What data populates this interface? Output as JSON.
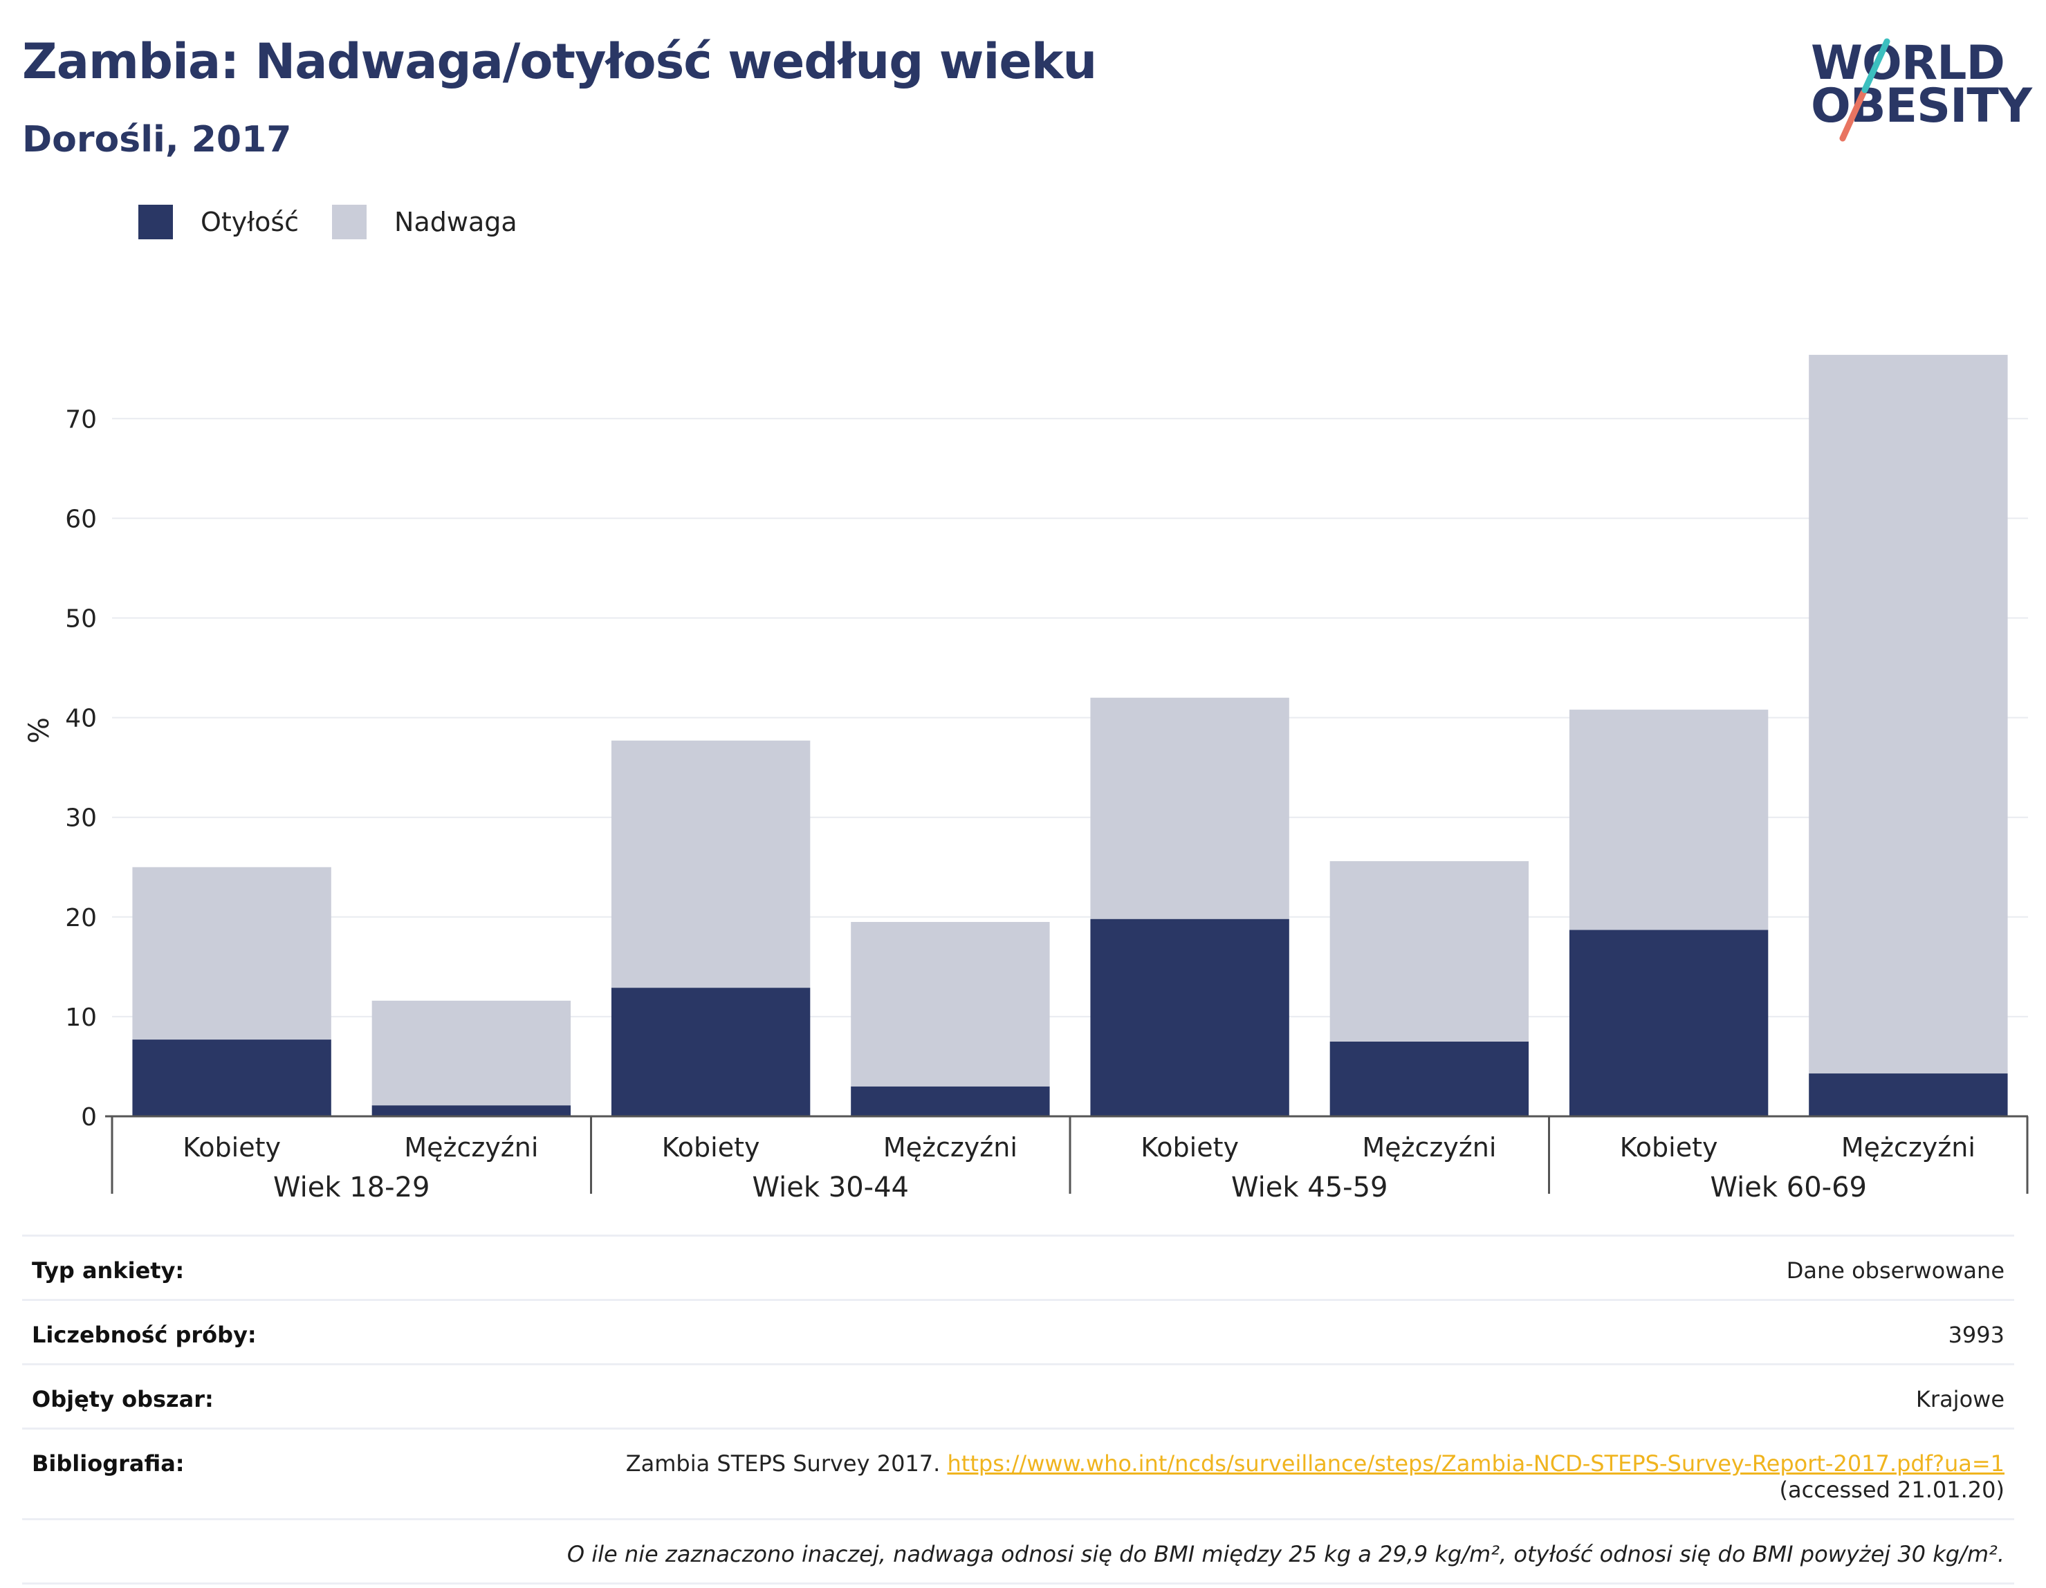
{
  "title": "Zambia: Nadwaga/otyłość według wieku",
  "subtitle": "Dorośli, 2017",
  "logo": {
    "line1": "WORLD",
    "line2": "OBESITY",
    "colors": {
      "teal": "#3cbfbf",
      "coral": "#e87461",
      "navy": "#2a3765"
    }
  },
  "colors": {
    "obesity": "#2a3765",
    "overweight": "#cacdd9",
    "grid": "#e9ebf0",
    "axis": "#555555"
  },
  "legend": [
    {
      "label": "Otyłość",
      "color": "#2a3765"
    },
    {
      "label": "Nadwaga",
      "color": "#cacdd9"
    }
  ],
  "chart_data": {
    "type": "bar",
    "stacked": true,
    "ylabel": "%",
    "ylim": [
      0,
      78
    ],
    "yticks": [
      0,
      10,
      20,
      30,
      40,
      50,
      60,
      70
    ],
    "grid": true,
    "legend_position": "top-left",
    "groups": [
      "Wiek 18-29",
      "Wiek 30-44",
      "Wiek 45-59",
      "Wiek 60-69"
    ],
    "categories": [
      "Kobiety",
      "Mężczyźni",
      "Kobiety",
      "Mężczyźni",
      "Kobiety",
      "Mężczyźni",
      "Kobiety",
      "Mężczyźni"
    ],
    "series": [
      {
        "name": "Otyłość",
        "values": [
          7.7,
          1.1,
          12.9,
          3.0,
          19.8,
          7.5,
          18.7,
          4.3
        ]
      },
      {
        "name": "Nadwaga",
        "values": [
          17.3,
          10.5,
          24.8,
          16.5,
          22.2,
          18.1,
          22.1,
          72.1
        ]
      }
    ]
  },
  "info": {
    "survey_type": {
      "label": "Typ ankiety:",
      "value": "Dane obserwowane"
    },
    "sample_size": {
      "label": "Liczebność próby:",
      "value": "3993"
    },
    "area": {
      "label": "Objęty obszar:",
      "value": "Krajowe"
    },
    "bibliography": {
      "label": "Bibliografia:",
      "text": "Zambia STEPS Survey 2017. ",
      "link": "https://www.who.int/ncds/surveillance/steps/Zambia-NCD-STEPS-Survey-Report-2017.pdf?ua=1",
      "accessed": "(accessed 21.01.20)"
    },
    "note": "O ile nie zaznaczono inaczej, nadwaga odnosi się do BMI między 25 kg a 29,9 kg/m², otyłość odnosi się do BMI powyżej 30 kg/m²."
  }
}
